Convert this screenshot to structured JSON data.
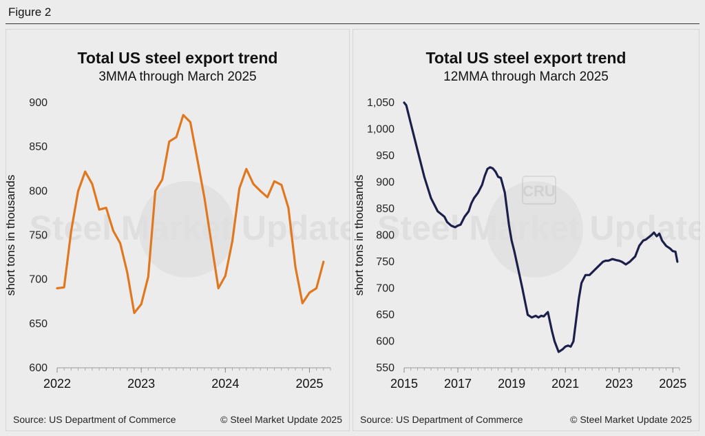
{
  "figure_label": "Figure 2",
  "panels": [
    {
      "title": "Total US steel export trend",
      "subtitle": "3MMA through March 2025",
      "source": "Source: US Department of Commerce",
      "copyright": "© Steel Market Update 2025",
      "watermark": "Steel Market Update"
    },
    {
      "title": "Total US steel export trend",
      "subtitle": "12MMA through March 2025",
      "source": "Source: US Department of Commerce",
      "copyright": "© Steel Market Update 2025",
      "watermark": "Steel Market Update",
      "logo_text": "CRU"
    }
  ],
  "chart_data": [
    {
      "type": "line",
      "title": "Total US steel export trend",
      "subtitle": "3MMA through March 2025",
      "xlabel": "",
      "ylabel": "short tons in thousands",
      "ylim": [
        600,
        900
      ],
      "yticks": [
        600,
        650,
        700,
        750,
        800,
        850,
        900
      ],
      "ytick_labels": [
        "600",
        "650",
        "700",
        "750",
        "800",
        "850",
        "900"
      ],
      "xlim": [
        2022,
        2025.25
      ],
      "xticks": [
        2022,
        2023,
        2024,
        2025
      ],
      "xtick_labels": [
        "2022",
        "2023",
        "2024",
        "2025"
      ],
      "grid": false,
      "color": "#E07820",
      "series": [
        {
          "x": [
            2022.0,
            2022.083,
            2022.167,
            2022.25,
            2022.333,
            2022.417,
            2022.5,
            2022.583,
            2022.667,
            2022.75,
            2022.833,
            2022.917,
            2023.0,
            2023.083,
            2023.167,
            2023.25,
            2023.333,
            2023.417,
            2023.5,
            2023.583,
            2023.667,
            2023.75,
            2023.833,
            2023.917,
            2024.0,
            2024.083,
            2024.167,
            2024.25,
            2024.333,
            2024.417,
            2024.5,
            2024.583,
            2024.667,
            2024.75,
            2024.833,
            2024.917,
            2025.0,
            2025.083,
            2025.167
          ],
          "values": [
            690,
            691,
            755,
            800,
            822,
            808,
            779,
            781,
            755,
            741,
            708,
            662,
            672,
            703,
            800,
            813,
            856,
            861,
            886,
            878,
            836,
            793,
            742,
            690,
            704,
            743,
            803,
            825,
            808,
            800,
            793,
            811,
            807,
            781,
            714,
            673,
            685,
            690,
            720
          ]
        }
      ]
    },
    {
      "type": "line",
      "title": "Total US steel export trend",
      "subtitle": "12MMA through March 2025",
      "xlabel": "",
      "ylabel": "short tons in thousands",
      "ylim": [
        550,
        1050
      ],
      "yticks": [
        550,
        600,
        650,
        700,
        750,
        800,
        850,
        900,
        950,
        1000,
        1050
      ],
      "ytick_labels": [
        "550",
        "600",
        "650",
        "700",
        "750",
        "800",
        "850",
        "900",
        "950",
        "1,000",
        "1,050"
      ],
      "xlim": [
        2015,
        2025.25
      ],
      "xticks": [
        2015,
        2017,
        2019,
        2021,
        2023,
        2025
      ],
      "xtick_labels": [
        "2015",
        "2017",
        "2019",
        "2021",
        "2023",
        "2025"
      ],
      "grid": false,
      "color": "#1B1F4A",
      "series": [
        {
          "x": [
            2015.0,
            2015.08,
            2015.25,
            2015.5,
            2015.75,
            2016.0,
            2016.25,
            2016.5,
            2016.6,
            2016.75,
            2016.9,
            2017.0,
            2017.1,
            2017.25,
            2017.4,
            2017.5,
            2017.6,
            2017.75,
            2017.9,
            2018.0,
            2018.1,
            2018.2,
            2018.3,
            2018.4,
            2018.5,
            2018.6,
            2018.75,
            2018.9,
            2019.0,
            2019.1,
            2019.25,
            2019.4,
            2019.5,
            2019.6,
            2019.75,
            2019.9,
            2020.0,
            2020.1,
            2020.2,
            2020.25,
            2020.35,
            2020.5,
            2020.6,
            2020.75,
            2020.9,
            2021.0,
            2021.1,
            2021.2,
            2021.3,
            2021.4,
            2021.5,
            2021.6,
            2021.75,
            2021.9,
            2022.0,
            2022.2,
            2022.4,
            2022.5,
            2022.6,
            2022.75,
            2022.9,
            2023.0,
            2023.1,
            2023.25,
            2023.4,
            2023.6,
            2023.75,
            2023.9,
            2024.0,
            2024.1,
            2024.2,
            2024.3,
            2024.4,
            2024.5,
            2024.6,
            2024.75,
            2024.9,
            2025.0,
            2025.1,
            2025.17
          ],
          "values": [
            1050,
            1045,
            1010,
            960,
            910,
            870,
            845,
            835,
            825,
            818,
            815,
            818,
            820,
            835,
            845,
            860,
            870,
            880,
            895,
            912,
            925,
            928,
            926,
            920,
            910,
            908,
            880,
            820,
            790,
            770,
            735,
            700,
            675,
            650,
            645,
            648,
            645,
            648,
            647,
            650,
            655,
            620,
            600,
            580,
            585,
            590,
            592,
            590,
            600,
            640,
            680,
            710,
            725,
            725,
            730,
            740,
            750,
            752,
            752,
            755,
            753,
            752,
            750,
            745,
            750,
            760,
            780,
            790,
            792,
            796,
            800,
            805,
            798,
            803,
            790,
            780,
            775,
            770,
            769,
            750
          ]
        }
      ]
    }
  ]
}
